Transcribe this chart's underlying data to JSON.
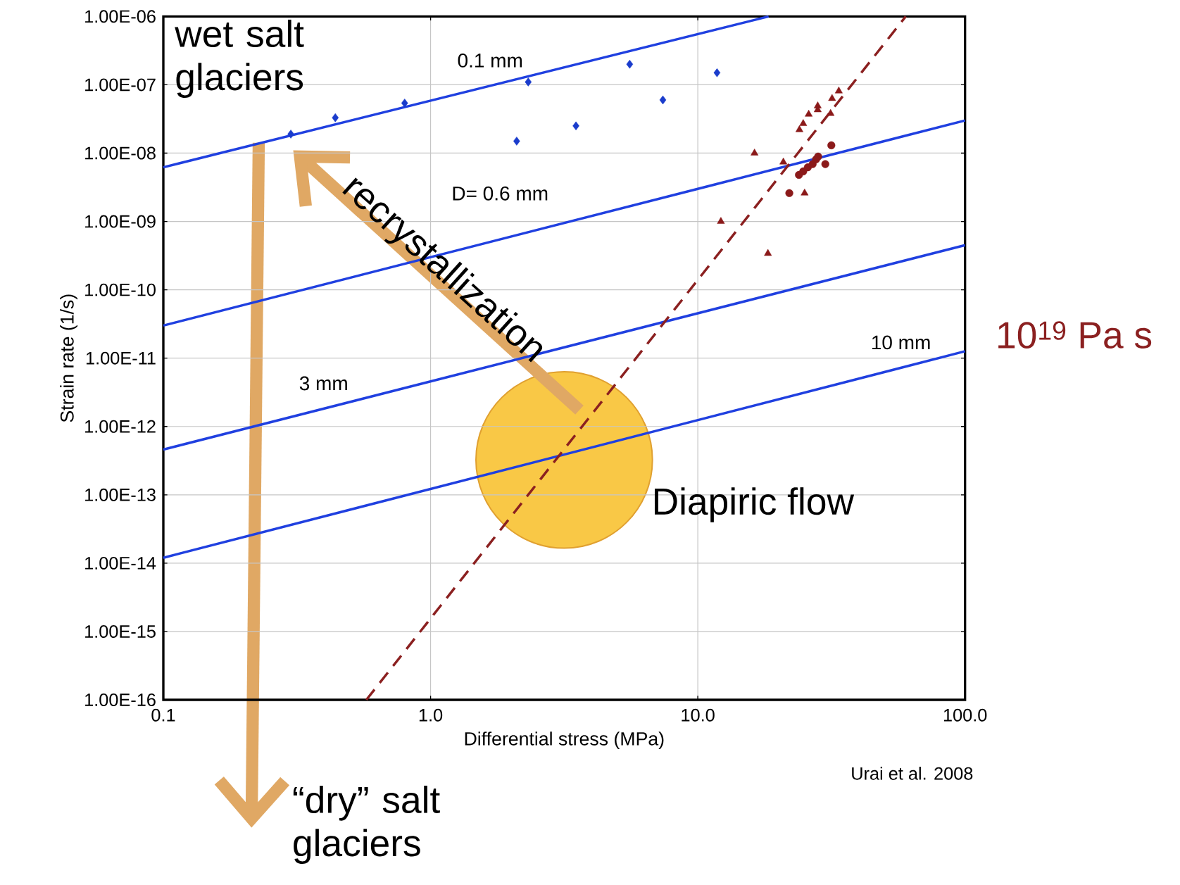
{
  "chart_data": {
    "type": "line",
    "xlabel": "Differential stress (MPa)",
    "ylabel": "Strain rate (1/s)",
    "log": "xy",
    "grid": true,
    "xlim": [
      0.1,
      100
    ],
    "ylim": [
      1e-16,
      1e-06
    ],
    "xticks": [
      {
        "value": 0.1,
        "label": "0.1"
      },
      {
        "value": 1,
        "label": "1.0"
      },
      {
        "value": 10,
        "label": "10.0"
      },
      {
        "value": 100,
        "label": "100.0"
      }
    ],
    "yticks": [
      {
        "value": 1e-16,
        "label": "1.00E-16"
      },
      {
        "value": 1e-15,
        "label": "1.00E-15"
      },
      {
        "value": 1e-14,
        "label": "1.00E-14"
      },
      {
        "value": 1e-13,
        "label": "1.00E-13"
      },
      {
        "value": 1e-12,
        "label": "1.00E-12"
      },
      {
        "value": 1e-11,
        "label": "1.00E-11"
      },
      {
        "value": 1e-10,
        "label": "1.00E-10"
      },
      {
        "value": 1e-09,
        "label": "1.00E-09"
      },
      {
        "value": 1e-08,
        "label": "1.00E-08"
      },
      {
        "value": 1e-07,
        "label": "1.00E-07"
      },
      {
        "value": 1e-06,
        "label": "1.00E-06"
      }
    ],
    "series": [
      {
        "name": "0.1 mm",
        "color": "#2040e0",
        "marker": "none",
        "line_style": "solid",
        "x": [
          0.1,
          18.4
        ],
        "values": [
          6.2e-09,
          1e-06
        ]
      },
      {
        "name": "D= 0.6 mm",
        "color": "#2040e0",
        "marker": "none",
        "line_style": "solid",
        "x": [
          0.1,
          100
        ],
        "values": [
          3e-11,
          3e-08
        ]
      },
      {
        "name": "3 mm",
        "color": "#2040e0",
        "marker": "none",
        "line_style": "solid",
        "x": [
          0.1,
          100
        ],
        "values": [
          4.6e-13,
          4.5e-10
        ]
      },
      {
        "name": "10 mm",
        "color": "#2040e0",
        "marker": "none",
        "line_style": "solid",
        "x": [
          0.1,
          100
        ],
        "values": [
          1.2e-14,
          1.26e-11
        ]
      },
      {
        "name": "10$^{19}$ Pa s",
        "color": "#8b2020",
        "marker": "none",
        "line_style": "dashed",
        "x": [
          0.575,
          60
        ],
        "values": [
          1e-16,
          1e-06
        ]
      },
      {
        "type": "scatter",
        "color": "#1a3ccc",
        "marker": "diamond",
        "x": [
          0.3,
          0.44,
          0.8,
          2.1,
          2.32,
          3.5,
          5.56,
          7.4,
          11.8
        ],
        "values": [
          1.9e-08,
          3.3e-08,
          5.4e-08,
          1.5e-08,
          1.1e-07,
          2.5e-08,
          2e-07,
          6e-08,
          1.5e-07
        ]
      },
      {
        "type": "scatter",
        "color": "#8b1a1a",
        "marker": "triangle",
        "x": [
          16.3,
          12.2,
          18.3,
          20.9,
          24.0,
          24.8,
          26,
          28.1,
          28.1,
          25.1,
          31.4,
          31.8,
          33.7
        ],
        "values": [
          1e-08,
          1e-09,
          3.4e-10,
          7.4e-09,
          2.2e-08,
          2.7e-08,
          3.7e-08,
          4.3e-08,
          4.9e-08,
          2.6e-09,
          3.8e-08,
          6.3e-08,
          8.1e-08
        ]
      },
      {
        "type": "scatter",
        "color": "#8b1a1a",
        "marker": "circle",
        "x": [
          22.0,
          23.9,
          24.8,
          25.8,
          26.9,
          27.7,
          28.2,
          30,
          31.6
        ],
        "values": [
          2.6e-09,
          4.8e-09,
          5.4e-09,
          6.2e-09,
          6.9e-09,
          8.1e-09,
          8.9e-09,
          6.9e-09,
          1.3e-08
        ]
      }
    ],
    "annotations": [
      "wet salt glaciers",
      "recrystallization",
      "“dry” salt glaciers",
      "Diapiric flow",
      "Urai et al. 2008"
    ]
  }
}
